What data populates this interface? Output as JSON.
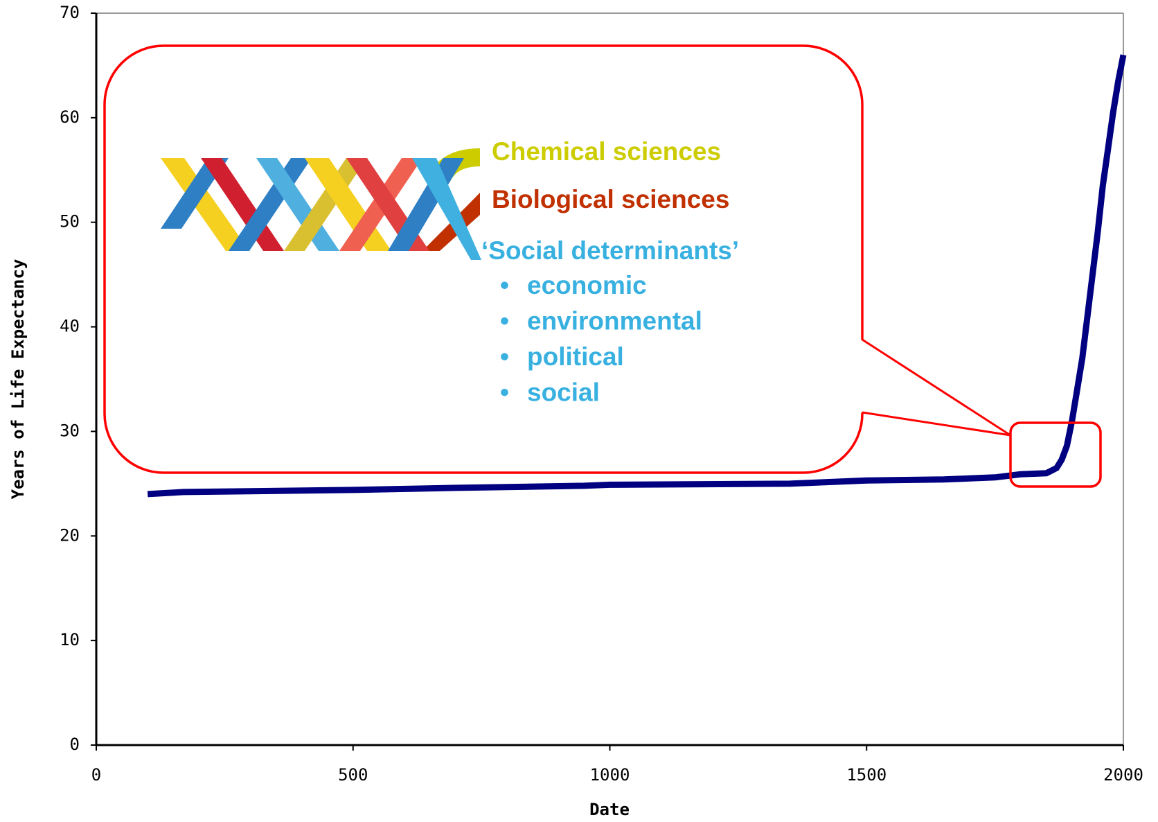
{
  "chart_data": {
    "type": "line",
    "xlabel": "Date",
    "ylabel": "Years of Life Expectancy",
    "x": [
      100,
      170,
      500,
      700,
      950,
      1000,
      1350,
      1500,
      1650,
      1750,
      1800,
      1850,
      1870,
      1880,
      1890,
      1900,
      1910,
      1920,
      1930,
      1940,
      1950,
      1960,
      1970,
      1980,
      1990,
      2000
    ],
    "values": [
      24,
      24.2,
      24.4,
      24.6,
      24.8,
      24.9,
      25.0,
      25.3,
      25.4,
      25.6,
      25.9,
      26.0,
      26.5,
      27.3,
      28.6,
      31.0,
      34.0,
      37.0,
      41.0,
      45.0,
      49.0,
      53.5,
      57.0,
      60.5,
      63.5,
      66.0
    ],
    "color": "#000080",
    "xlim": [
      0,
      2000
    ],
    "xticks": [
      0,
      500,
      1000,
      1500,
      2000
    ],
    "ylim": [
      0,
      70
    ],
    "yticks": [
      0,
      10,
      20,
      30,
      40,
      50,
      60,
      70
    ],
    "annotations": {
      "chemical": "Chemical sciences",
      "biological": "Biological sciences",
      "social": "‘Social determinants’",
      "bullet": "•",
      "items": [
        "economic",
        "environmental",
        "political",
        "social"
      ]
    }
  }
}
